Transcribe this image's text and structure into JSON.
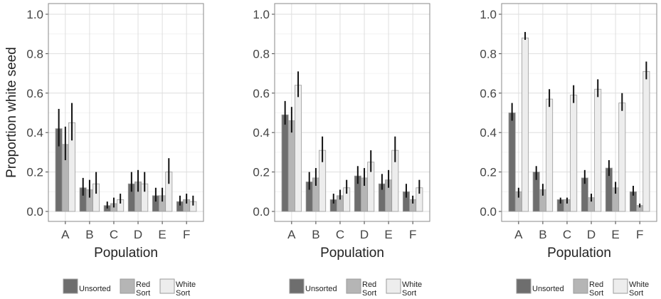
{
  "chart_data": [
    {
      "type": "bar",
      "ylabel": "Proportion white seed",
      "xlabel": "Population",
      "categories": [
        "A",
        "B",
        "C",
        "D",
        "E",
        "F"
      ],
      "ylim": [
        0,
        1.0
      ],
      "yticks": [
        "0.0",
        "0.2",
        "0.4",
        "0.6",
        "0.8",
        "1.0"
      ],
      "grid": true,
      "legend_position": "bottom",
      "series": [
        {
          "name": "Unsorted",
          "color": "#6e6e6e",
          "values": [
            0.42,
            0.12,
            0.03,
            0.14,
            0.08,
            0.05
          ],
          "err_low": [
            0.33,
            0.08,
            0.015,
            0.1,
            0.05,
            0.03
          ],
          "err_high": [
            0.52,
            0.17,
            0.05,
            0.2,
            0.12,
            0.08
          ]
        },
        {
          "name": "Red Sort",
          "color": "#b5b5b5",
          "values": [
            0.34,
            0.11,
            0.04,
            0.15,
            0.08,
            0.06
          ],
          "err_low": [
            0.26,
            0.07,
            0.02,
            0.1,
            0.05,
            0.04
          ],
          "err_high": [
            0.43,
            0.16,
            0.07,
            0.21,
            0.12,
            0.09
          ]
        },
        {
          "name": "White Sort",
          "color": "#ededed",
          "values": [
            0.45,
            0.14,
            0.06,
            0.14,
            0.2,
            0.05
          ],
          "err_low": [
            0.36,
            0.09,
            0.04,
            0.1,
            0.14,
            0.03
          ],
          "err_high": [
            0.55,
            0.2,
            0.09,
            0.2,
            0.27,
            0.08
          ]
        }
      ]
    },
    {
      "type": "bar",
      "ylabel": "",
      "xlabel": "Population",
      "categories": [
        "A",
        "B",
        "C",
        "D",
        "E",
        "F"
      ],
      "ylim": [
        0,
        1.0
      ],
      "yticks": [
        "0.0",
        "0.2",
        "0.4",
        "0.6",
        "0.8",
        "1.0"
      ],
      "grid": true,
      "legend_position": "bottom",
      "series": [
        {
          "name": "Unsorted",
          "color": "#6e6e6e",
          "values": [
            0.49,
            0.15,
            0.06,
            0.18,
            0.14,
            0.1
          ],
          "err_low": [
            0.44,
            0.11,
            0.04,
            0.14,
            0.11,
            0.07
          ],
          "err_high": [
            0.56,
            0.2,
            0.09,
            0.23,
            0.19,
            0.14
          ]
        },
        {
          "name": "Red Sort",
          "color": "#b5b5b5",
          "values": [
            0.46,
            0.17,
            0.08,
            0.17,
            0.16,
            0.06
          ],
          "err_low": [
            0.4,
            0.13,
            0.06,
            0.13,
            0.12,
            0.04
          ],
          "err_high": [
            0.53,
            0.22,
            0.11,
            0.22,
            0.21,
            0.08
          ]
        },
        {
          "name": "White Sort",
          "color": "#ededed",
          "values": [
            0.64,
            0.31,
            0.12,
            0.25,
            0.31,
            0.12
          ],
          "err_low": [
            0.58,
            0.25,
            0.09,
            0.2,
            0.25,
            0.09
          ],
          "err_high": [
            0.71,
            0.38,
            0.16,
            0.31,
            0.38,
            0.16
          ]
        }
      ]
    },
    {
      "type": "bar",
      "ylabel": "",
      "xlabel": "Population",
      "categories": [
        "A",
        "B",
        "C",
        "D",
        "E",
        "F"
      ],
      "ylim": [
        0,
        1.0
      ],
      "yticks": [
        "0.0",
        "0.2",
        "0.4",
        "0.6",
        "0.8",
        "1.0"
      ],
      "grid": true,
      "legend_position": "bottom",
      "series": [
        {
          "name": "Unsorted",
          "color": "#6e6e6e",
          "values": [
            0.5,
            0.2,
            0.06,
            0.17,
            0.22,
            0.1
          ],
          "err_low": [
            0.46,
            0.16,
            0.04,
            0.14,
            0.18,
            0.08
          ],
          "err_high": [
            0.55,
            0.23,
            0.07,
            0.21,
            0.26,
            0.13
          ]
        },
        {
          "name": "Red Sort",
          "color": "#b5b5b5",
          "values": [
            0.1,
            0.11,
            0.06,
            0.07,
            0.12,
            0.03
          ],
          "err_low": [
            0.07,
            0.08,
            0.04,
            0.05,
            0.09,
            0.02
          ],
          "err_high": [
            0.12,
            0.14,
            0.07,
            0.09,
            0.15,
            0.04
          ]
        },
        {
          "name": "White Sort",
          "color": "#ededed",
          "values": [
            0.88,
            0.57,
            0.59,
            0.62,
            0.55,
            0.71
          ],
          "err_low": [
            0.87,
            0.53,
            0.55,
            0.58,
            0.51,
            0.67
          ],
          "err_high": [
            0.91,
            0.62,
            0.64,
            0.67,
            0.6,
            0.76
          ]
        }
      ]
    }
  ],
  "legend": {
    "items": [
      {
        "label_line1": "Unsorted",
        "label_line2": "",
        "color": "#6e6e6e"
      },
      {
        "label_line1": "Red",
        "label_line2": "Sort",
        "color": "#b5b5b5"
      },
      {
        "label_line1": "White",
        "label_line2": "Sort",
        "color": "#ededed"
      }
    ]
  }
}
